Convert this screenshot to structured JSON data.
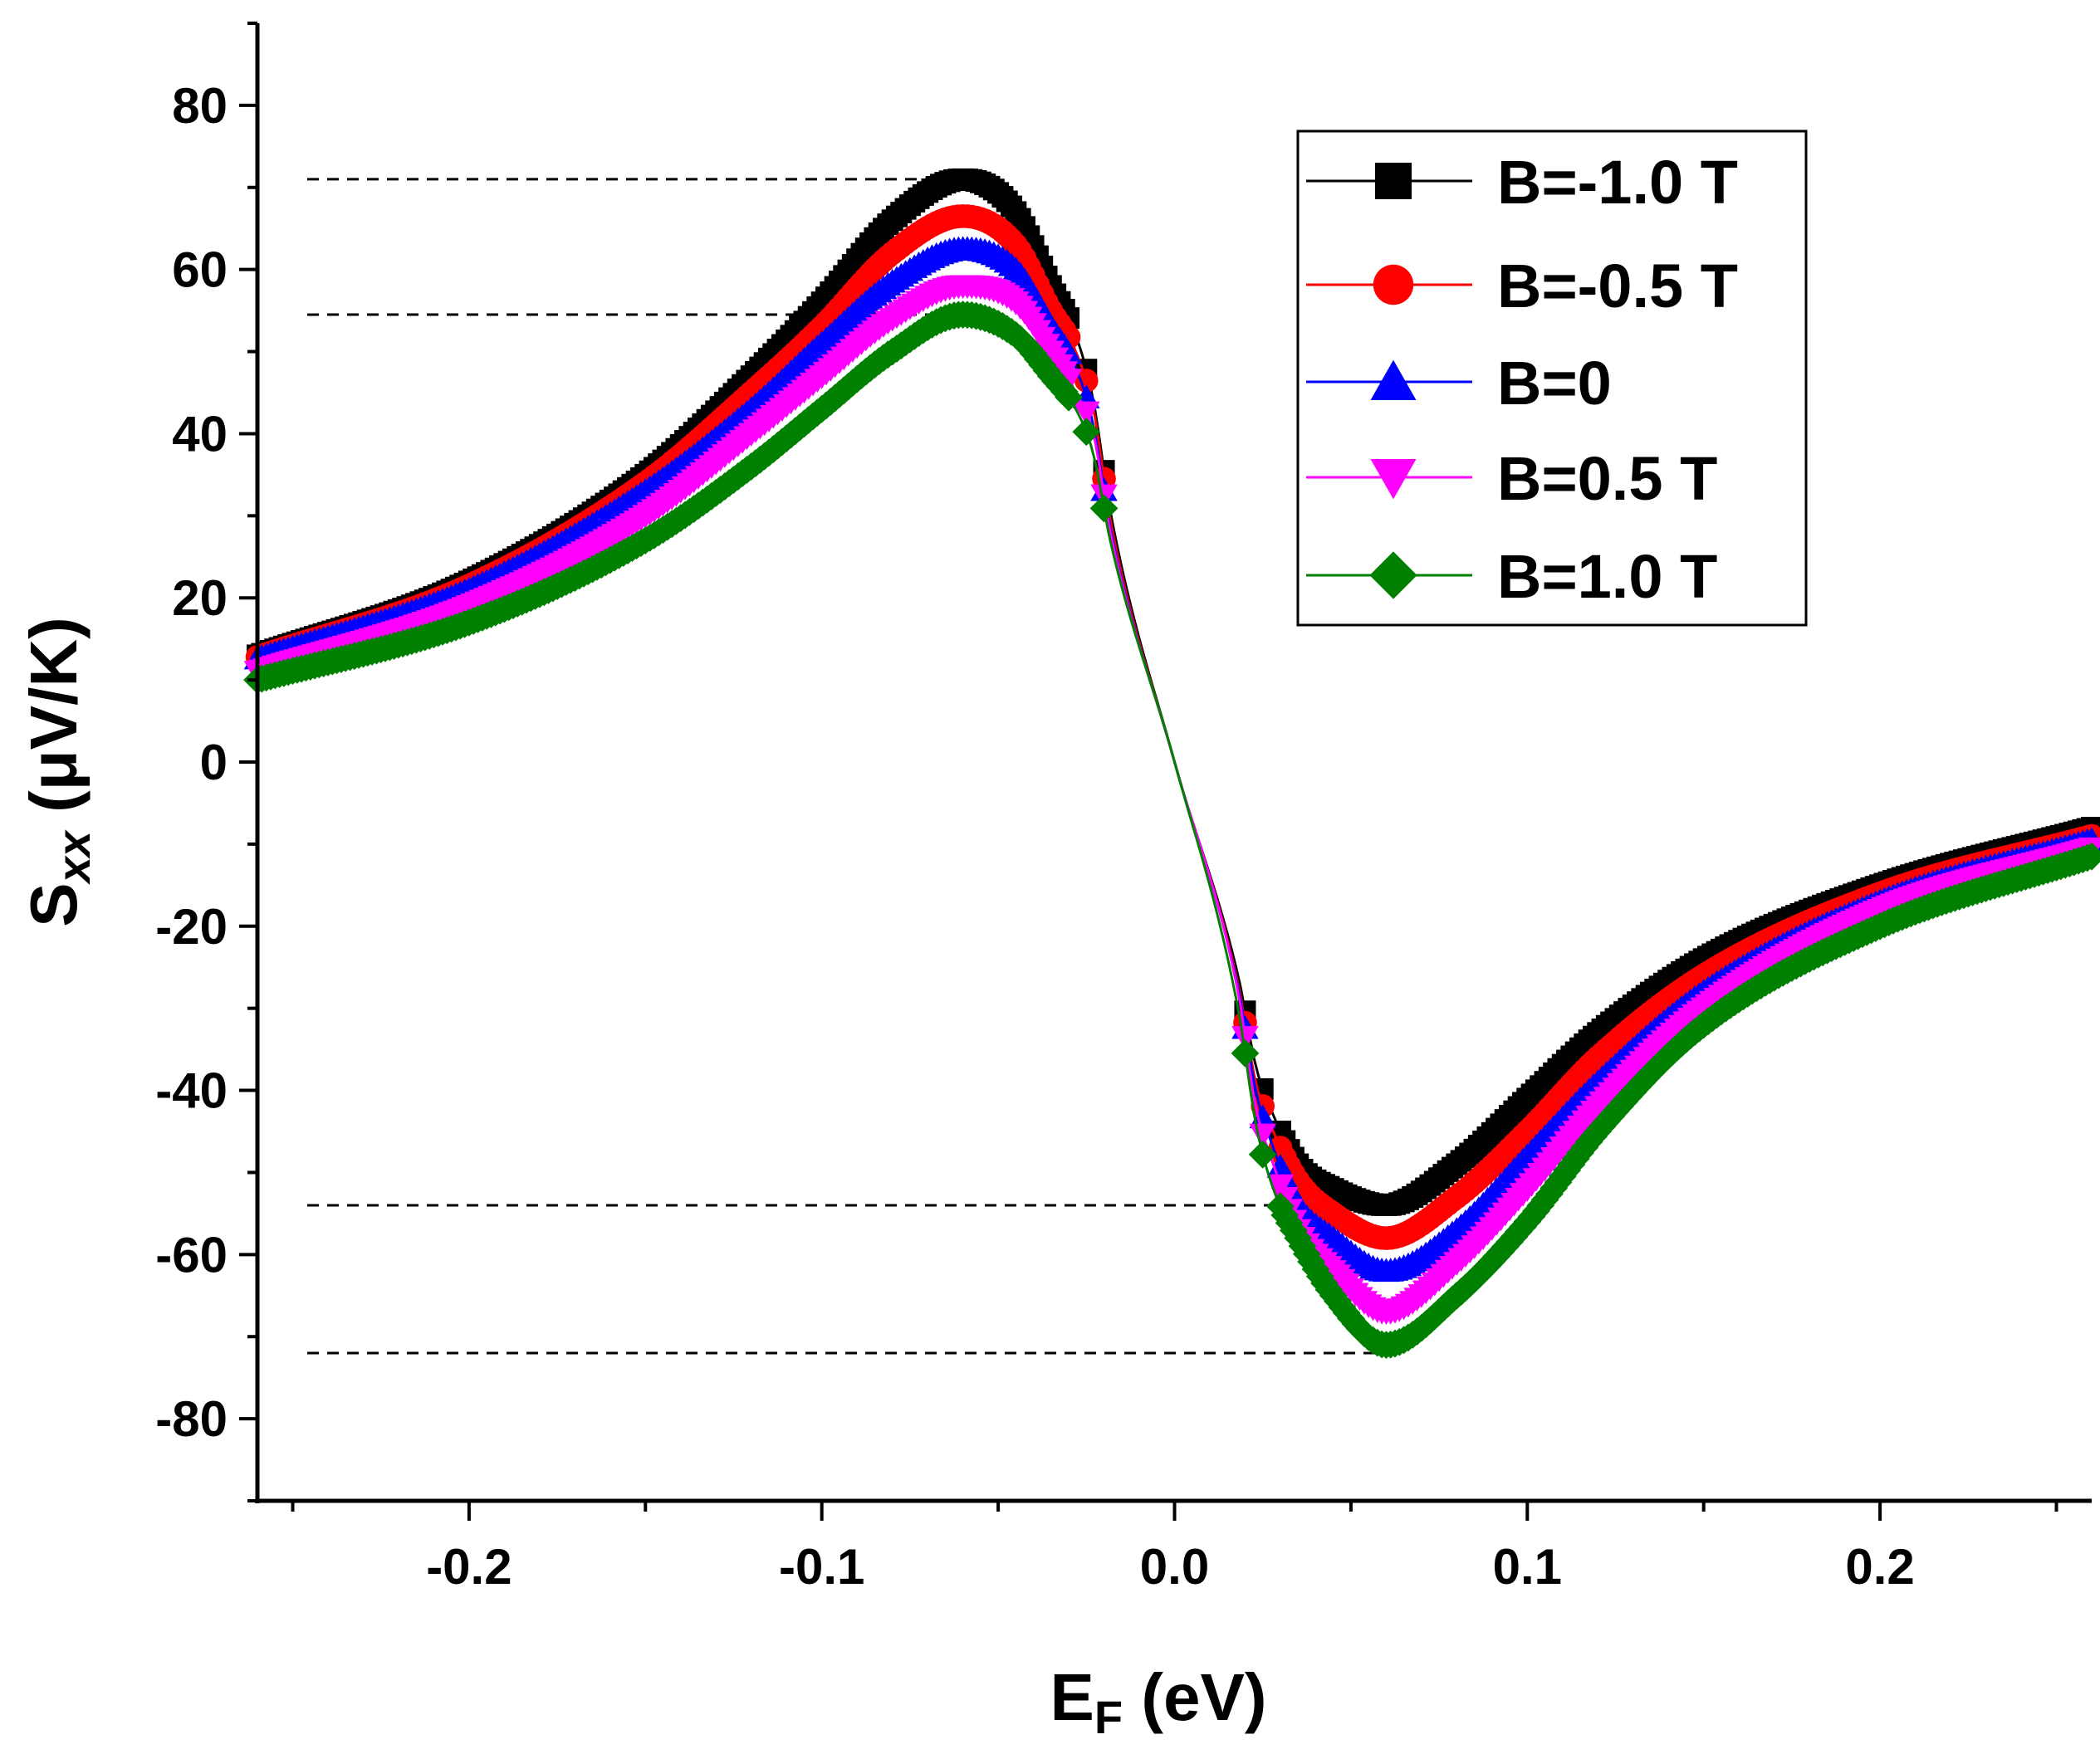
{
  "chart_data": {
    "type": "line",
    "title": "",
    "xlabel": {
      "main": "E",
      "sub": "F",
      "unit": " (eV)"
    },
    "ylabel": {
      "main": "S",
      "sub": "xx",
      "unit": " (μV/K)"
    },
    "xlim": [
      -0.26,
      0.26
    ],
    "ylim": [
      -90,
      90
    ],
    "xticks": [
      {
        "v": -0.2,
        "label": "-0.2"
      },
      {
        "v": -0.1,
        "label": "-0.1"
      },
      {
        "v": 0.0,
        "label": "0.0"
      },
      {
        "v": 0.1,
        "label": "0.1"
      },
      {
        "v": 0.2,
        "label": "0.2"
      }
    ],
    "yticks": [
      {
        "v": 80,
        "label": "80"
      },
      {
        "v": 60,
        "label": "60"
      },
      {
        "v": 40,
        "label": "40"
      },
      {
        "v": 20,
        "label": "20"
      },
      {
        "v": 0,
        "label": "0"
      },
      {
        "v": -20,
        "label": "-20"
      },
      {
        "v": -40,
        "label": "-40"
      },
      {
        "v": -60,
        "label": "-60"
      },
      {
        "v": -80,
        "label": "-80"
      }
    ],
    "legend_position": "top-right",
    "reference_lines": [
      {
        "y": 71,
        "x_end": -0.06
      },
      {
        "y": 54.5,
        "x_end": -0.06
      },
      {
        "y": -54,
        "x_end": 0.06
      },
      {
        "y": -72,
        "x_end": 0.06
      }
    ],
    "series": [
      {
        "name": "B=-1.0 T",
        "color": "#000000",
        "marker": "square",
        "x": [
          -0.26,
          -0.2,
          -0.15,
          -0.12,
          -0.1,
          -0.08,
          -0.06,
          -0.045,
          -0.035,
          -0.028,
          -0.023,
          -0.018,
          0.0,
          0.018,
          0.023,
          0.028,
          0.035,
          0.045,
          0.06,
          0.08,
          0.1,
          0.12,
          0.15,
          0.2,
          0.26
        ],
        "y": [
          13,
          22,
          35,
          47,
          56,
          66,
          71,
          67,
          58,
          52,
          44,
          30,
          0,
          -26,
          -37,
          -43,
          -49,
          -52,
          -54,
          -49,
          -41,
          -33,
          -24,
          -15,
          -8
        ]
      },
      {
        "name": "B=-0.5 T",
        "color": "#ff0000",
        "marker": "circle",
        "x": [
          -0.26,
          -0.2,
          -0.15,
          -0.12,
          -0.1,
          -0.08,
          -0.06,
          -0.045,
          -0.035,
          -0.028,
          -0.023,
          -0.018,
          0.0,
          0.018,
          0.023,
          0.028,
          0.035,
          0.045,
          0.06,
          0.08,
          0.1,
          0.12,
          0.15,
          0.2,
          0.26
        ],
        "y": [
          12.8,
          21.5,
          34,
          45,
          53,
          62,
          66.5,
          63,
          55,
          50,
          43,
          29,
          0,
          -27,
          -39,
          -45,
          -51,
          -55,
          -58,
          -53,
          -45,
          -36,
          -26,
          -16,
          -9
        ]
      },
      {
        "name": "B=0",
        "color": "#0000ff",
        "marker": "triangle-up",
        "x": [
          -0.26,
          -0.2,
          -0.15,
          -0.12,
          -0.1,
          -0.08,
          -0.06,
          -0.045,
          -0.035,
          -0.028,
          -0.023,
          -0.018,
          0.0,
          0.018,
          0.023,
          0.028,
          0.035,
          0.045,
          0.06,
          0.08,
          0.1,
          0.12,
          0.15,
          0.2,
          0.26
        ],
        "y": [
          12.6,
          21,
          33,
          43,
          51,
          58.5,
          62.5,
          60,
          53,
          48,
          41,
          28,
          0,
          -27.5,
          -40,
          -47,
          -54,
          -58,
          -62,
          -57,
          -48,
          -39,
          -28,
          -17,
          -9.5
        ]
      },
      {
        "name": "B=0.5 T",
        "color": "#ff00ff",
        "marker": "triangle-down",
        "x": [
          -0.26,
          -0.2,
          -0.15,
          -0.12,
          -0.1,
          -0.08,
          -0.06,
          -0.045,
          -0.035,
          -0.028,
          -0.023,
          -0.018,
          0.0,
          0.018,
          0.023,
          0.028,
          0.035,
          0.045,
          0.06,
          0.08,
          0.1,
          0.12,
          0.15,
          0.2,
          0.26
        ],
        "y": [
          11,
          19,
          30,
          40,
          47,
          54,
          58,
          56,
          50,
          45,
          40,
          27.5,
          0,
          -28,
          -42,
          -49,
          -57,
          -62,
          -67,
          -61,
          -52,
          -42,
          -30,
          -18,
          -10.5
        ]
      },
      {
        "name": "B=1.0 T",
        "color": "#008000",
        "marker": "diamond",
        "x": [
          -0.26,
          -0.2,
          -0.15,
          -0.12,
          -0.1,
          -0.08,
          -0.06,
          -0.045,
          -0.035,
          -0.028,
          -0.023,
          -0.018,
          0.0,
          0.018,
          0.023,
          0.028,
          0.035,
          0.045,
          0.06,
          0.08,
          0.1,
          0.12,
          0.15,
          0.2,
          0.26
        ],
        "y": [
          10,
          17,
          27,
          36,
          43,
          50,
          54.5,
          52,
          47,
          43,
          37.5,
          26.5,
          0,
          -30,
          -44,
          -52,
          -58,
          -65,
          -71,
          -65,
          -56,
          -45,
          -32,
          -20,
          -11.5
        ]
      }
    ]
  }
}
